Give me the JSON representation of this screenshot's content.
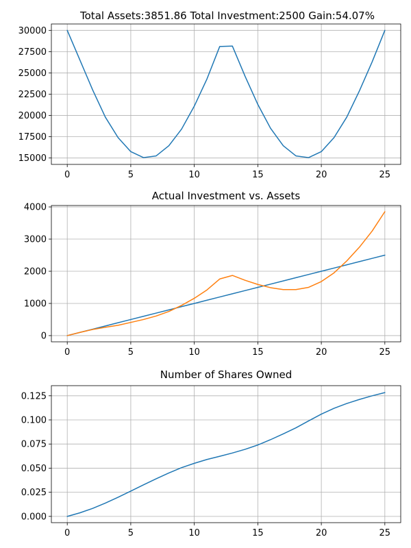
{
  "chart_data": [
    {
      "type": "line",
      "title": "Total Assets:3851.86  Total Investment:2500  Gain:54.07%",
      "xlabel": "",
      "ylabel": "",
      "xlim": [
        -1.25,
        26.25
      ],
      "ylim": [
        14250,
        30750
      ],
      "xticks": [
        0,
        5,
        10,
        15,
        20,
        25
      ],
      "xtick_labels": [
        "0",
        "5",
        "10",
        "15",
        "20",
        "25"
      ],
      "yticks": [
        15000,
        17500,
        20000,
        22500,
        25000,
        27500,
        30000
      ],
      "ytick_labels": [
        "15000",
        "17500",
        "20000",
        "22500",
        "25000",
        "27500",
        "30000"
      ],
      "grid": true,
      "series": [
        {
          "color": "#1f77b4",
          "x": [
            0,
            1,
            2,
            3,
            4,
            5,
            6,
            7,
            8,
            9,
            10,
            11,
            12,
            13,
            14,
            15,
            16,
            17,
            18,
            19,
            20,
            21,
            22,
            23,
            24,
            25
          ],
          "y": [
            30000,
            26500,
            23000,
            19800,
            17400,
            15750,
            15050,
            15250,
            16450,
            18400,
            21100,
            24300,
            28100,
            28150,
            24600,
            21300,
            18500,
            16450,
            15250,
            15050,
            15750,
            17400,
            19800,
            22900,
            26300,
            30000
          ]
        }
      ]
    },
    {
      "type": "line",
      "title": "Actual Investment vs. Assets",
      "xlabel": "",
      "ylabel": "",
      "xlim": [
        -1.25,
        26.25
      ],
      "ylim": [
        -193,
        4044
      ],
      "xticks": [
        0,
        5,
        10,
        15,
        20,
        25
      ],
      "xtick_labels": [
        "0",
        "5",
        "10",
        "15",
        "20",
        "25"
      ],
      "yticks": [
        0,
        1000,
        2000,
        3000,
        4000
      ],
      "ytick_labels": [
        "0",
        "1000",
        "2000",
        "3000",
        "4000"
      ],
      "grid": true,
      "series": [
        {
          "color": "#1f77b4",
          "x": [
            0,
            1,
            2,
            3,
            4,
            5,
            6,
            7,
            8,
            9,
            10,
            11,
            12,
            13,
            14,
            15,
            16,
            17,
            18,
            19,
            20,
            21,
            22,
            23,
            24,
            25
          ],
          "y": [
            0,
            100,
            200,
            300,
            400,
            500,
            600,
            700,
            800,
            900,
            1000,
            1100,
            1200,
            1300,
            1400,
            1500,
            1600,
            1700,
            1800,
            1900,
            2000,
            2100,
            2200,
            2300,
            2400,
            2500
          ]
        },
        {
          "color": "#ff7f0e",
          "x": [
            0,
            1,
            2,
            3,
            4,
            5,
            6,
            7,
            8,
            9,
            10,
            11,
            12,
            13,
            14,
            15,
            16,
            17,
            18,
            19,
            20,
            21,
            22,
            23,
            24,
            25
          ],
          "y": [
            0,
            100,
            190,
            260,
            320,
            410,
            500,
            610,
            750,
            940,
            1160,
            1420,
            1760,
            1870,
            1720,
            1590,
            1490,
            1430,
            1430,
            1500,
            1680,
            1950,
            2320,
            2750,
            3250,
            3852
          ]
        }
      ]
    },
    {
      "type": "line",
      "title": "Number of Shares Owned",
      "xlabel": "",
      "ylabel": "",
      "xlim": [
        -1.25,
        26.25
      ],
      "ylim": [
        -0.0065,
        0.1355
      ],
      "xticks": [
        0,
        5,
        10,
        15,
        20,
        25
      ],
      "xtick_labels": [
        "0",
        "5",
        "10",
        "15",
        "20",
        "25"
      ],
      "yticks": [
        0,
        0.025,
        0.05,
        0.075,
        0.1,
        0.125
      ],
      "ytick_labels": [
        "0.000",
        "0.025",
        "0.050",
        "0.075",
        "0.100",
        "0.125"
      ],
      "grid": true,
      "series": [
        {
          "color": "#1f77b4",
          "x": [
            0,
            1,
            2,
            3,
            4,
            5,
            6,
            7,
            8,
            9,
            10,
            11,
            12,
            13,
            14,
            15,
            16,
            17,
            18,
            19,
            20,
            21,
            22,
            23,
            24,
            25
          ],
          "y": [
            0,
            0.0037,
            0.0083,
            0.0138,
            0.0198,
            0.0262,
            0.0327,
            0.039,
            0.045,
            0.0505,
            0.055,
            0.059,
            0.0623,
            0.0657,
            0.0695,
            0.074,
            0.0795,
            0.0855,
            0.0918,
            0.099,
            0.106,
            0.112,
            0.117,
            0.1212,
            0.125,
            0.1283
          ]
        }
      ]
    }
  ]
}
